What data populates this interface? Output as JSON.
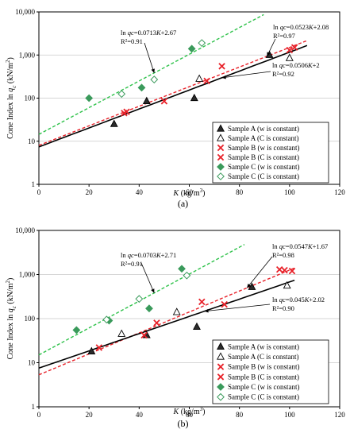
{
  "chart_data": [
    {
      "type": "scatter",
      "panel_label": "(a)",
      "xlabel_pre": "K",
      "xlabel_unit": "(kg/m",
      "xlabel_sup": "3",
      "xlabel_end": ")",
      "ylabel": "Cone Index ln qc (kN/m²)",
      "ylabel_pre": "Cone Index ln ",
      "ylabel_q": "q",
      "ylabel_sub": "c",
      "ylabel_unit": " (kN/m",
      "ylabel_sup": "2",
      "ylabel_end": ")",
      "xlim": [
        0,
        120
      ],
      "ylim": [
        1,
        10000
      ],
      "yscale": "log",
      "x_ticks": [
        "0",
        "20",
        "40",
        "60",
        "80",
        "100",
        "120"
      ],
      "y_ticks": [
        "1",
        "10",
        "100",
        "1,000",
        "10,000"
      ],
      "grid": "horizontal",
      "legend_position": "lower-right",
      "series": [
        {
          "name": "Sample A  (w is constant)",
          "marker": "triangle-filled",
          "color": "#2b2b2b",
          "points": [
            [
              30,
              25
            ],
            [
              43,
              85
            ],
            [
              62,
              100
            ],
            [
              92,
              1000
            ]
          ]
        },
        {
          "name": "Sample A  (C is constant)",
          "marker": "triangle-open",
          "color": "#000000",
          "points": [
            [
              64,
              280
            ],
            [
              100,
              850
            ]
          ]
        },
        {
          "name": "Sample B  (w is constant)",
          "marker": "x",
          "color": "#e8222a",
          "points": [
            [
              34,
              45
            ],
            [
              50,
              85
            ],
            [
              67,
              250
            ],
            [
              100,
              1300
            ]
          ]
        },
        {
          "name": "Sample B  (C is constant)",
          "marker": "x",
          "color": "#e8222a",
          "points": [
            [
              35,
              48
            ],
            [
              73,
              550
            ],
            [
              102,
              1500
            ]
          ]
        },
        {
          "name": "Sample C  (w is constant)",
          "marker": "diamond-filled",
          "color": "#3a9a5b",
          "points": [
            [
              20,
              100
            ],
            [
              41,
              175
            ],
            [
              61,
              1400
            ]
          ]
        },
        {
          "name": "Sample C  (C is constant)",
          "marker": "diamond-open",
          "color": "#3a9a5b",
          "points": [
            [
              33,
              125
            ],
            [
              46,
              270
            ],
            [
              65,
              1900
            ]
          ]
        }
      ],
      "fit_lines": [
        {
          "slope": 0.0713,
          "intercept": 2.67,
          "x_range": [
            0,
            92
          ],
          "color": "#2ec24a",
          "style": "dashed"
        },
        {
          "slope": 0.0523,
          "intercept": 2.08,
          "x_range": [
            0,
            107
          ],
          "color": "#e8222a",
          "style": "dashed"
        },
        {
          "slope": 0.0506,
          "intercept": 2.0,
          "x_range": [
            0,
            107
          ],
          "color": "#000000",
          "style": "solid"
        }
      ],
      "annotations": [
        {
          "line1_pre": "ln ",
          "line1_it": "qc",
          "line1_post": "=0.0713",
          "line1_it2": "K",
          "line1_end": "+2.67",
          "line2": "R²=0.91"
        },
        {
          "line1_pre": "ln ",
          "line1_it": "qc",
          "line1_post": "=0.0523",
          "line1_it2": "K",
          "line1_end": "+2.08",
          "line2": "R²=0.97"
        },
        {
          "line1_pre": "ln ",
          "line1_it": "qc",
          "line1_post": "=0.0506",
          "line1_it2": "K",
          "line1_end": "+2",
          "line2": "R²=0.92"
        }
      ]
    },
    {
      "type": "scatter",
      "panel_label": "(b)",
      "xlabel_pre": "K",
      "xlabel_unit": "(kg/m",
      "xlabel_sup": "3",
      "xlabel_end": ")",
      "ylabel": "Cone Index ln qc (kN/m²)",
      "ylabel_pre": "Cone Index ln ",
      "ylabel_q": "q",
      "ylabel_sub": "c",
      "ylabel_unit": " (kN/m",
      "ylabel_sup": "2",
      "ylabel_end": ")",
      "xlim": [
        0,
        120
      ],
      "ylim": [
        1,
        10000
      ],
      "yscale": "log",
      "x_ticks": [
        "0",
        "20",
        "40",
        "60",
        "80",
        "100",
        "120"
      ],
      "y_ticks": [
        "1",
        "10",
        "100",
        "1,000",
        "10,000"
      ],
      "grid": "horizontal",
      "legend_position": "lower-right",
      "series": [
        {
          "name": "Sample A  (w is constant)",
          "marker": "triangle-filled",
          "color": "#2b2b2b",
          "points": [
            [
              21,
              18
            ],
            [
              43,
              42
            ],
            [
              63,
              65
            ],
            [
              85,
              520
            ]
          ]
        },
        {
          "name": "Sample A  (C is constant)",
          "marker": "triangle-open",
          "color": "#000000",
          "points": [
            [
              33,
              45
            ],
            [
              55,
              140
            ],
            [
              99,
              560
            ]
          ]
        },
        {
          "name": "Sample B  (w is constant)",
          "marker": "x",
          "color": "#e8222a",
          "points": [
            [
              24,
              22
            ],
            [
              47,
              80
            ],
            [
              65,
              240
            ],
            [
              96,
              1300
            ],
            [
              101,
              1200
            ]
          ]
        },
        {
          "name": "Sample B  (C is constant)",
          "marker": "x",
          "color": "#e8222a",
          "points": [
            [
              42,
              42
            ],
            [
              74,
              210
            ],
            [
              98,
              1250
            ]
          ]
        },
        {
          "name": "Sample C  (w is constant)",
          "marker": "diamond-filled",
          "color": "#3a9a5b",
          "points": [
            [
              15,
              55
            ],
            [
              28,
              90
            ],
            [
              44,
              170
            ],
            [
              57,
              1350
            ]
          ]
        },
        {
          "name": "Sample C  (C is constant)",
          "marker": "diamond-open",
          "color": "#3a9a5b",
          "points": [
            [
              27,
              95
            ],
            [
              40,
              280
            ],
            [
              59,
              950
            ]
          ]
        }
      ],
      "fit_lines": [
        {
          "slope": 0.0703,
          "intercept": 2.71,
          "x_range": [
            0,
            82
          ],
          "color": "#2ec24a",
          "style": "dashed"
        },
        {
          "slope": 0.0547,
          "intercept": 1.67,
          "x_range": [
            0,
            102
          ],
          "color": "#e8222a",
          "style": "dashed"
        },
        {
          "slope": 0.045,
          "intercept": 2.02,
          "x_range": [
            0,
            102
          ],
          "color": "#000000",
          "style": "solid"
        }
      ],
      "annotations": [
        {
          "line1_pre": "ln ",
          "line1_it": "qc",
          "line1_post": "=0.0703",
          "line1_it2": "K",
          "line1_end": "+2.71",
          "line2": "R²=0.91"
        },
        {
          "line1_pre": "ln ",
          "line1_it": "qc",
          "line1_post": "=0.0547",
          "line1_it2": "K",
          "line1_end": "+1.67",
          "line2": "R²=0.98"
        },
        {
          "line1_pre": "ln ",
          "line1_it": "qc",
          "line1_post": "=0.045",
          "line1_it2": "K",
          "line1_end": "+2.02",
          "line2": "R²=0.90"
        }
      ]
    }
  ]
}
